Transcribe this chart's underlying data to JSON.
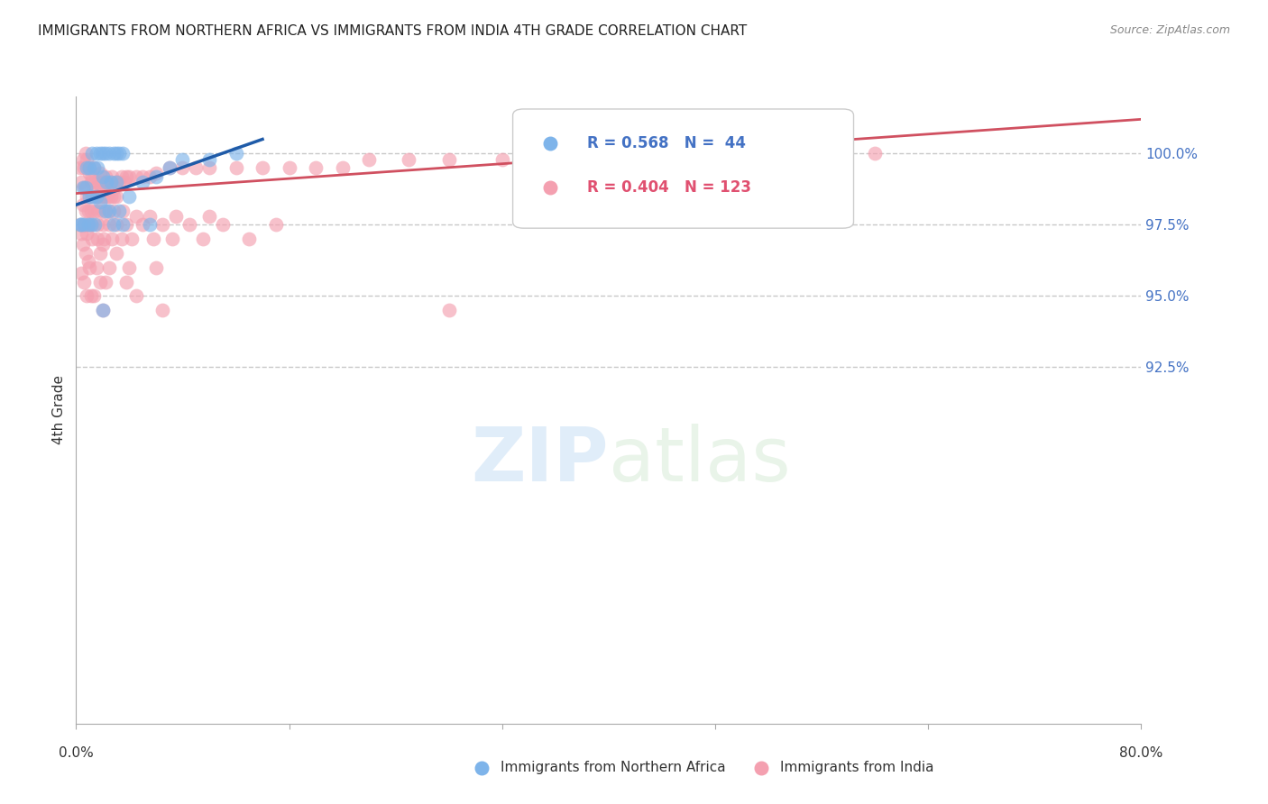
{
  "title": "IMMIGRANTS FROM NORTHERN AFRICA VS IMMIGRANTS FROM INDIA 4TH GRADE CORRELATION CHART",
  "source": "Source: ZipAtlas.com",
  "ylabel": "4th Grade",
  "xlim": [
    0.0,
    80.0
  ],
  "ylim": [
    80.0,
    102.0
  ],
  "legend_blue_r": "R = 0.568",
  "legend_blue_n": "N =  44",
  "legend_pink_r": "R = 0.404",
  "legend_pink_n": "N = 123",
  "legend_blue_label": "Immigrants from Northern Africa",
  "legend_pink_label": "Immigrants from India",
  "blue_color": "#7EB4EA",
  "pink_color": "#F4A0B0",
  "blue_line_color": "#1F5BA8",
  "pink_line_color": "#D05060",
  "ytick_values": [
    92.5,
    95.0,
    97.5,
    100.0
  ],
  "ytick_labels": [
    "92.5%",
    "95.0%",
    "97.5%",
    "100.0%"
  ],
  "blue_scatter_x": [
    1.2,
    1.5,
    1.8,
    2.0,
    2.2,
    2.5,
    2.8,
    3.0,
    3.2,
    3.5,
    0.8,
    1.0,
    1.3,
    1.6,
    2.0,
    2.3,
    2.6,
    3.0,
    0.5,
    0.7,
    1.0,
    1.2,
    1.5,
    1.8,
    2.2,
    2.5,
    3.2,
    4.0,
    5.0,
    6.0,
    7.0,
    8.0,
    10.0,
    12.0,
    0.3,
    0.4,
    0.6,
    0.9,
    1.1,
    1.4,
    2.8,
    3.5,
    5.5,
    2.0
  ],
  "blue_scatter_y": [
    100.0,
    100.0,
    100.0,
    100.0,
    100.0,
    100.0,
    100.0,
    100.0,
    100.0,
    100.0,
    99.5,
    99.5,
    99.5,
    99.5,
    99.2,
    99.0,
    99.0,
    99.0,
    98.8,
    98.8,
    98.5,
    98.5,
    98.5,
    98.3,
    98.0,
    98.0,
    98.0,
    98.5,
    99.0,
    99.2,
    99.5,
    99.8,
    99.8,
    100.0,
    97.5,
    97.5,
    97.5,
    97.5,
    97.5,
    97.5,
    97.5,
    97.5,
    97.5,
    94.5
  ],
  "pink_scatter_x": [
    0.3,
    0.5,
    0.6,
    0.7,
    0.8,
    0.9,
    1.0,
    1.1,
    1.2,
    1.3,
    1.4,
    1.5,
    1.6,
    1.7,
    1.8,
    1.9,
    2.0,
    2.1,
    2.2,
    2.3,
    2.4,
    2.5,
    2.6,
    2.7,
    2.8,
    2.9,
    3.0,
    3.2,
    3.4,
    3.6,
    3.8,
    4.0,
    4.5,
    5.0,
    5.5,
    6.0,
    7.0,
    8.0,
    9.0,
    10.0,
    12.0,
    14.0,
    16.0,
    18.0,
    20.0,
    22.0,
    25.0,
    28.0,
    32.0,
    60.0,
    0.4,
    0.6,
    0.8,
    1.0,
    1.2,
    1.5,
    1.8,
    2.2,
    2.6,
    3.0,
    0.5,
    0.7,
    0.9,
    1.1,
    1.4,
    1.7,
    2.0,
    2.4,
    2.8,
    3.5,
    4.5,
    5.5,
    7.5,
    10.0,
    0.3,
    0.6,
    0.9,
    1.2,
    1.6,
    2.0,
    2.5,
    3.0,
    3.8,
    5.0,
    6.5,
    8.5,
    11.0,
    15.0,
    0.4,
    0.8,
    1.2,
    1.6,
    2.1,
    2.7,
    3.4,
    4.2,
    5.8,
    7.2,
    9.5,
    13.0,
    0.5,
    2.0,
    3.0,
    1.8,
    0.7,
    0.9,
    1.0,
    1.5,
    2.5,
    4.0,
    6.0,
    0.4,
    0.6,
    1.8,
    2.2,
    3.8,
    1.3,
    0.8,
    1.1,
    4.5,
    2.0,
    6.5,
    28.0
  ],
  "pink_scatter_y": [
    99.5,
    99.8,
    99.5,
    100.0,
    99.8,
    99.5,
    99.3,
    99.0,
    99.2,
    99.5,
    99.0,
    98.8,
    98.5,
    99.0,
    99.3,
    98.8,
    98.5,
    99.0,
    99.2,
    98.8,
    98.5,
    98.8,
    99.0,
    99.2,
    98.5,
    98.8,
    99.0,
    99.0,
    99.2,
    99.0,
    99.2,
    99.2,
    99.2,
    99.2,
    99.2,
    99.3,
    99.5,
    99.5,
    99.5,
    99.5,
    99.5,
    99.5,
    99.5,
    99.5,
    99.5,
    99.8,
    99.8,
    99.8,
    99.8,
    100.0,
    99.0,
    98.8,
    98.5,
    98.5,
    98.5,
    98.5,
    98.5,
    98.5,
    98.5,
    98.5,
    98.2,
    98.0,
    98.0,
    98.0,
    98.0,
    98.0,
    98.0,
    98.0,
    98.0,
    98.0,
    97.8,
    97.8,
    97.8,
    97.8,
    97.5,
    97.5,
    97.5,
    97.5,
    97.5,
    97.5,
    97.5,
    97.5,
    97.5,
    97.5,
    97.5,
    97.5,
    97.5,
    97.5,
    97.2,
    97.2,
    97.0,
    97.0,
    97.0,
    97.0,
    97.0,
    97.0,
    97.0,
    97.0,
    97.0,
    97.0,
    96.8,
    96.8,
    96.5,
    96.5,
    96.5,
    96.2,
    96.0,
    96.0,
    96.0,
    96.0,
    96.0,
    95.8,
    95.5,
    95.5,
    95.5,
    95.5,
    95.0,
    95.0,
    95.0,
    95.0,
    94.5,
    94.5,
    94.5
  ],
  "blue_trend_x": [
    0.0,
    14.0
  ],
  "blue_trend_y": [
    98.2,
    100.5
  ],
  "pink_trend_x": [
    0.0,
    80.0
  ],
  "pink_trend_y": [
    98.6,
    101.2
  ],
  "watermark_zip": "ZIP",
  "watermark_atlas": "atlas",
  "grid_color": "#C8C8C8",
  "axis_color": "#AAAAAA",
  "right_tick_color": "#4472C4",
  "legend_text_blue_color": "#4472C4",
  "legend_text_pink_color": "#E05070"
}
